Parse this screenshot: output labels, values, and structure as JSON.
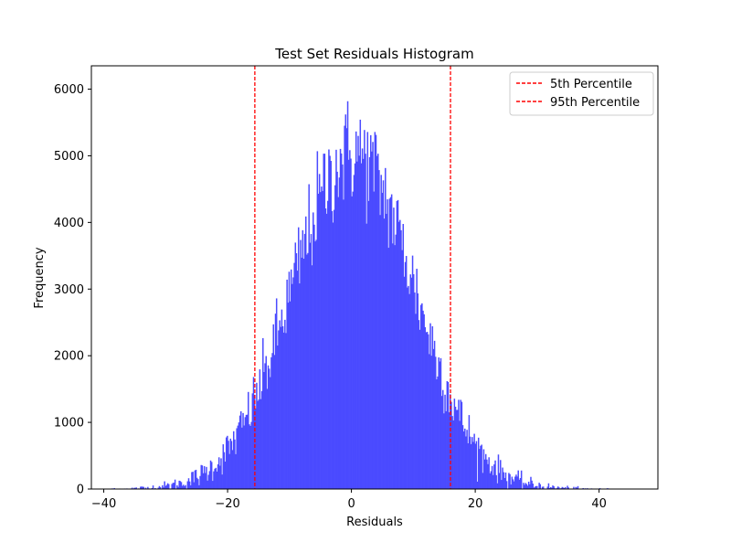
{
  "chart_data": {
    "type": "bar",
    "title": "Test Set Residuals Histogram",
    "xlabel": "Residuals",
    "ylabel": "Frequency",
    "xlim": [
      -42,
      49.5
    ],
    "ylim": [
      0,
      6350
    ],
    "x_ticks": [
      -40,
      -20,
      0,
      20,
      40
    ],
    "x_tick_labels": [
      "−40",
      "−20",
      "0",
      "20",
      "40"
    ],
    "y_ticks": [
      0,
      1000,
      2000,
      3000,
      4000,
      5000,
      6000
    ],
    "y_tick_labels": [
      "0",
      "1000",
      "2000",
      "3000",
      "4000",
      "5000",
      "6000"
    ],
    "grid": false,
    "bar_color": "#4b4bff",
    "histogram": {
      "bin_range": [
        -38.9,
        45.6
      ],
      "bin_count": 500,
      "center": 0.3,
      "peak": 5050,
      "sigma": 9.8,
      "noise_scale": 420
    },
    "reference_lines": [
      {
        "name": "5th Percentile",
        "x": -15.6,
        "color": "#ff0000",
        "style": "dashed"
      },
      {
        "name": "95th Percentile",
        "x": 16.0,
        "color": "#ff0000",
        "style": "dashed"
      }
    ],
    "legend": {
      "position": "top-right",
      "entries": [
        {
          "label": "5th Percentile",
          "color": "#ff0000"
        },
        {
          "label": "95th Percentile",
          "color": "#ff0000"
        }
      ]
    }
  }
}
